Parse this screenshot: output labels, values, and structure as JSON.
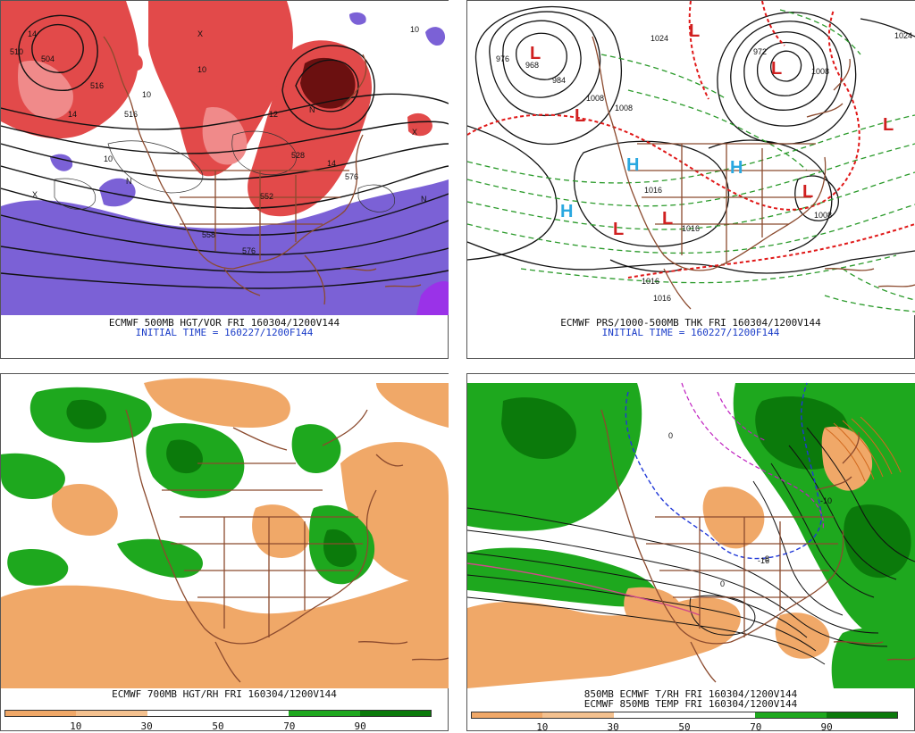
{
  "colors": {
    "vort_red": "#e24a4a",
    "vort_light": "#f08a8a",
    "vort_purple": "#7b61d6",
    "rh_green": "#1ea81e",
    "rh_dark": "#0b7a0b",
    "rh_orange": "#f0a868",
    "rh_orange2": "#f4c18f",
    "map_brown": "#8b4a2e",
    "high_blue": "#2aa8e0",
    "low_red": "#d02020"
  },
  "panels": [
    {
      "id": "top-left",
      "caption": "ECMWF 500MB HGT/VOR FRI 160304/1200V144",
      "initial": "INITIAL TIME = 160227/1200F144",
      "contour_labels": [
        "504",
        "516",
        "516",
        "528",
        "552",
        "576",
        "558",
        "576",
        "510"
      ],
      "vort_labels": [
        "14",
        "10",
        "10",
        "10",
        "10",
        "12",
        "14",
        "14",
        "N",
        "N",
        "N",
        "X",
        "X",
        "X"
      ]
    },
    {
      "id": "top-right",
      "caption": "ECMWF PRS/1000-500MB THK FRI 160304/1200V144",
      "initial": "INITIAL TIME = 160227/1200F144",
      "centers": [
        {
          "type": "L",
          "color_key": "low_red"
        },
        {
          "type": "L",
          "color_key": "low_red"
        },
        {
          "type": "L",
          "color_key": "low_red"
        },
        {
          "type": "L",
          "color_key": "low_red"
        },
        {
          "type": "L",
          "color_key": "low_red"
        },
        {
          "type": "L",
          "color_key": "low_red"
        },
        {
          "type": "L",
          "color_key": "low_red"
        },
        {
          "type": "L",
          "color_key": "low_red"
        },
        {
          "type": "H",
          "color_key": "high_blue"
        },
        {
          "type": "H",
          "color_key": "high_blue"
        },
        {
          "type": "H",
          "color_key": "high_blue"
        }
      ],
      "pressure_labels": [
        "976",
        "968",
        "984",
        "1008",
        "1024",
        "1024",
        "1008",
        "1008",
        "1016",
        "1016",
        "1016",
        "1016",
        "1008",
        "972"
      ]
    },
    {
      "id": "bottom-left",
      "caption": "ECMWF 700MB HGT/RH FRI 160304/1200V144",
      "colorbar_ticks": [
        "10",
        "30",
        "50",
        "70",
        "90"
      ]
    },
    {
      "id": "bottom-right",
      "caption_line1": "850MB ECMWF T/RH FRI 160304/1200V144",
      "caption_line2": "ECMWF 850MB TEMP FRI 160304/1200V144",
      "temp_labels": [
        "0",
        "0",
        "-8",
        "-10",
        "-16"
      ],
      "colorbar_ticks": [
        "10",
        "30",
        "50",
        "70",
        "90"
      ]
    }
  ]
}
